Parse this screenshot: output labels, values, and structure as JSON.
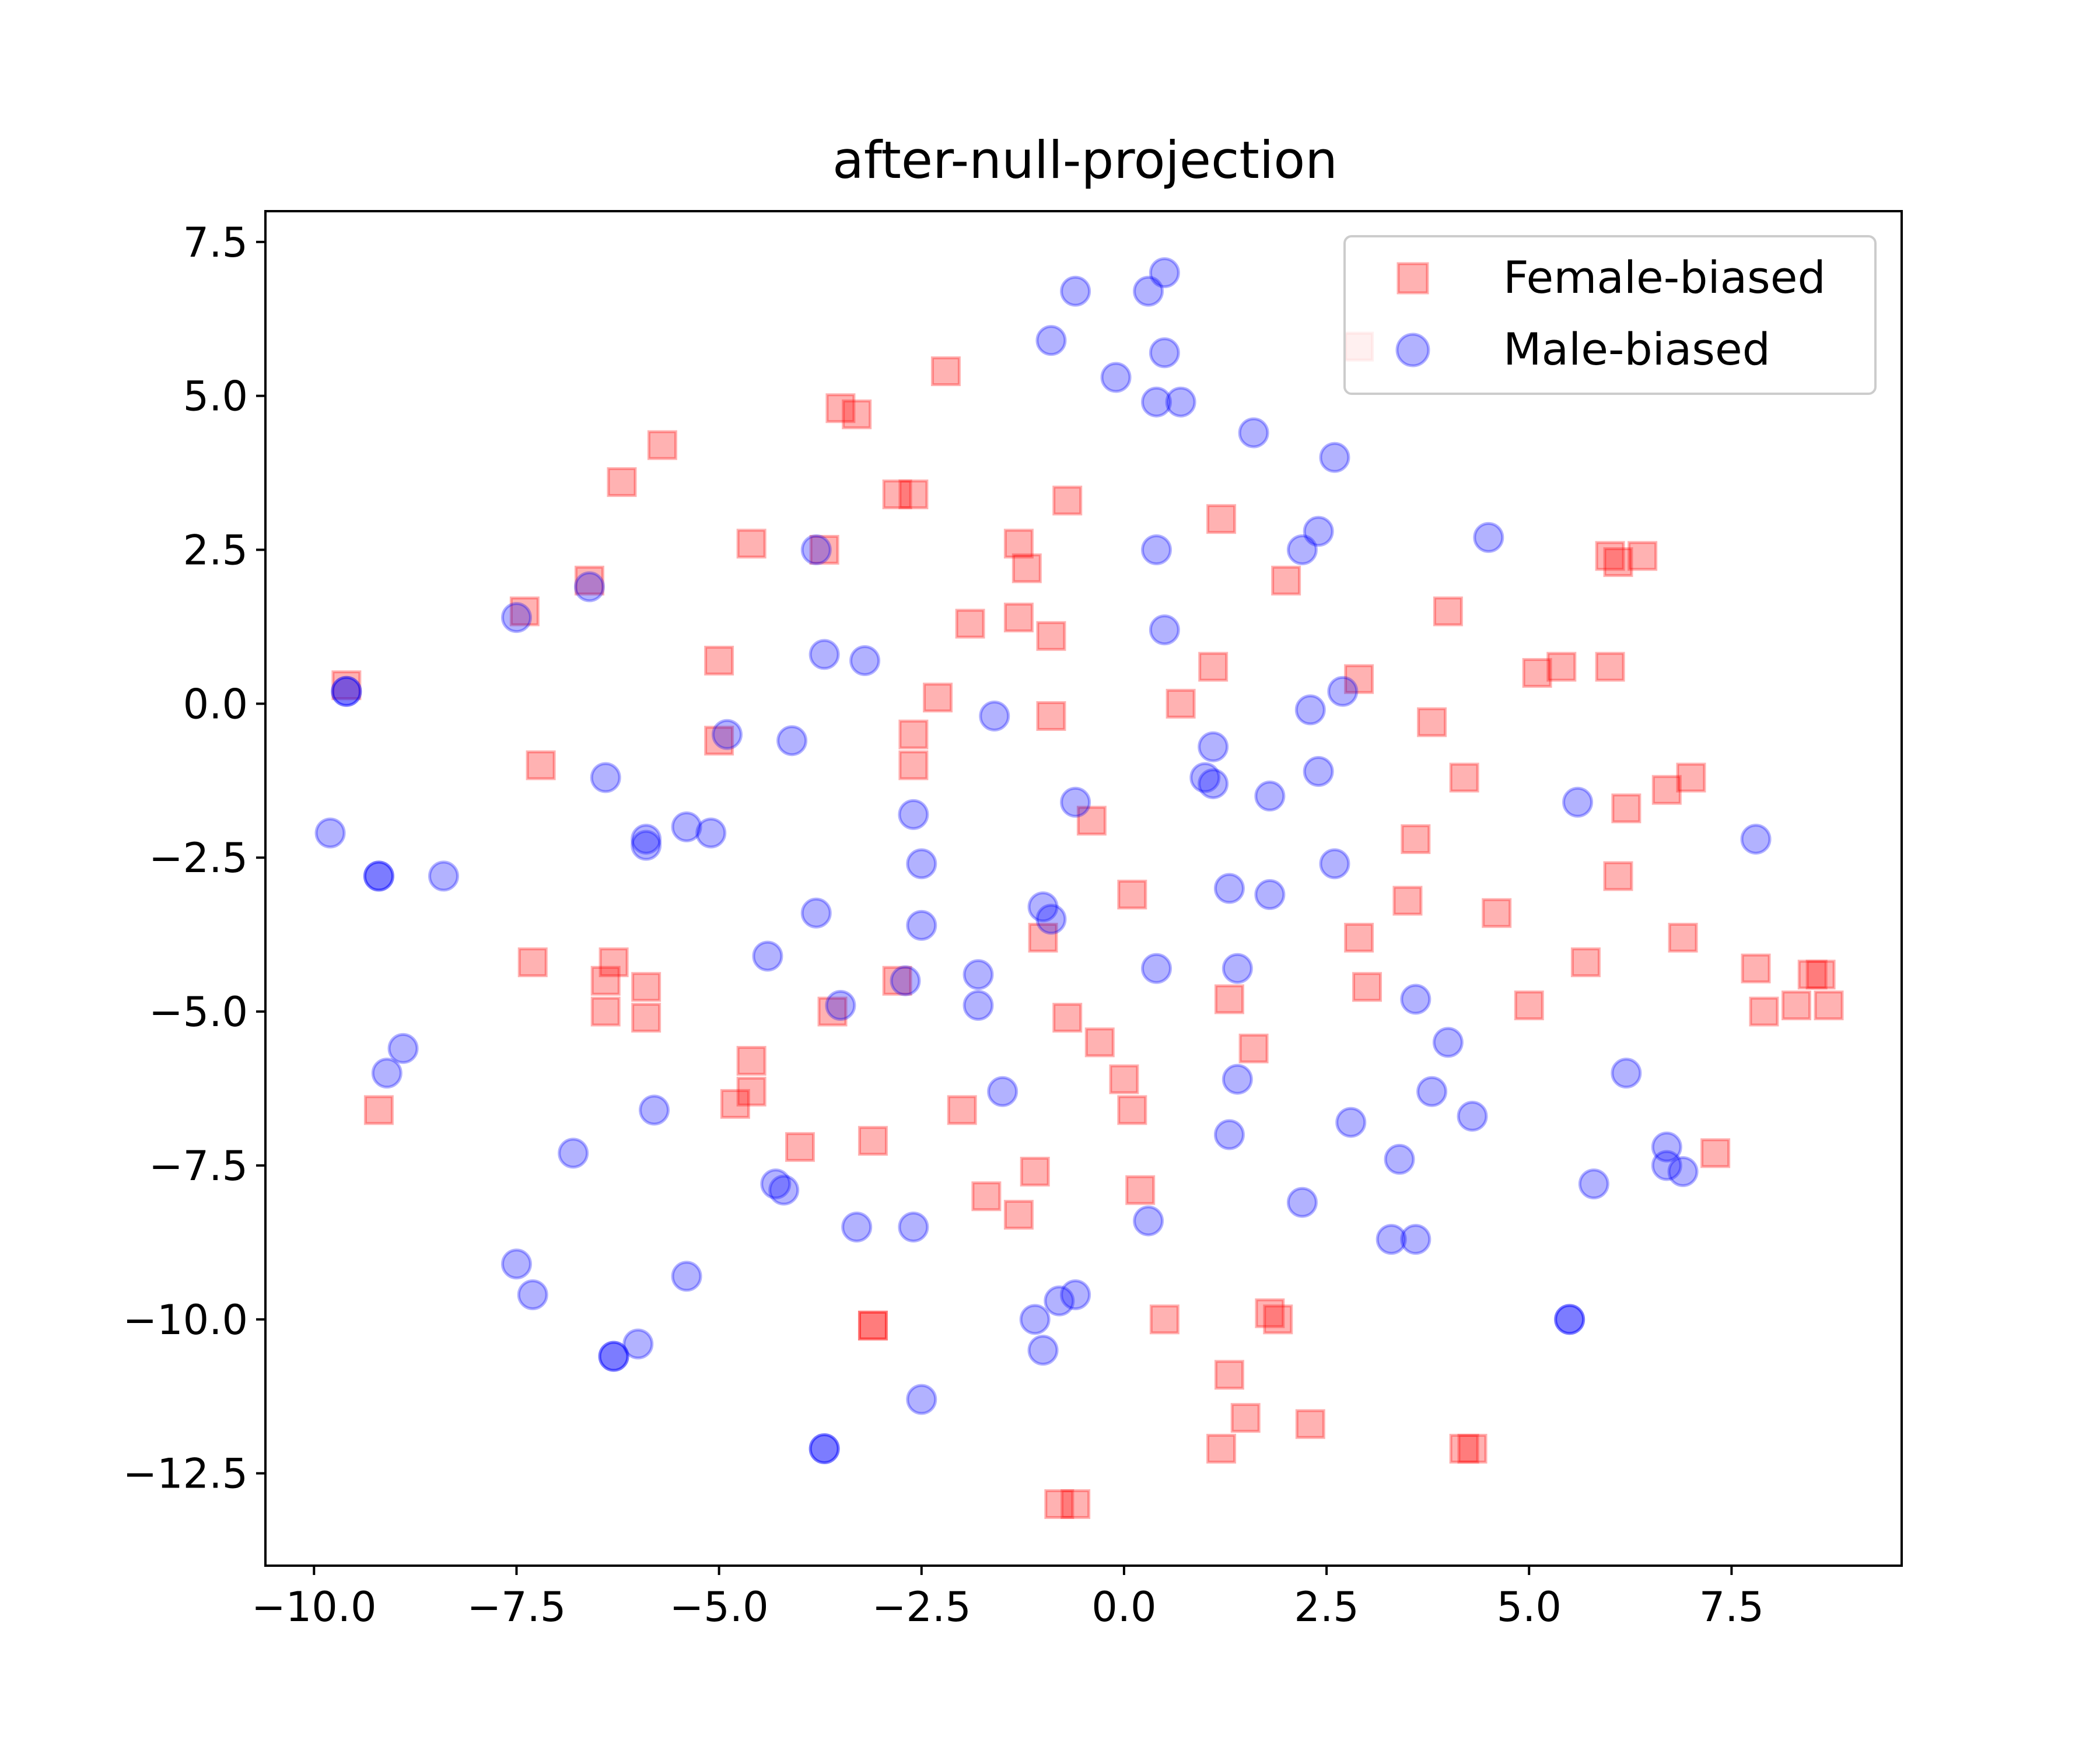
{
  "chart_data": {
    "type": "scatter",
    "title": "after-null-projection",
    "xlabel": "",
    "ylabel": "",
    "xlim": [
      -10.6,
      9.6
    ],
    "ylim": [
      -14.0,
      8.0
    ],
    "xticks": [
      -10.0,
      -7.5,
      -5.0,
      -2.5,
      0.0,
      2.5,
      5.0,
      7.5
    ],
    "xtick_labels": [
      "−10.0",
      "−7.5",
      "−5.0",
      "−2.5",
      "0.0",
      "2.5",
      "5.0",
      "7.5"
    ],
    "yticks": [
      7.5,
      5.0,
      2.5,
      0.0,
      -2.5,
      -5.0,
      -7.5,
      -10.0,
      -12.5
    ],
    "ytick_labels": [
      "7.5",
      "5.0",
      "2.5",
      "0.0",
      "−2.5",
      "−5.0",
      "−7.5",
      "−10.0",
      "−12.5"
    ],
    "grid": false,
    "legend_position": "top-right",
    "series": [
      {
        "name": "Female-biased",
        "color": "#ff0000",
        "marker": "square",
        "alpha": 0.3,
        "points": [
          [
            -9.6,
            0.3
          ],
          [
            -9.2,
            -6.6
          ],
          [
            -7.4,
            1.5
          ],
          [
            -7.2,
            -1.0
          ],
          [
            -7.3,
            -4.2
          ],
          [
            -6.6,
            2.0
          ],
          [
            -6.2,
            3.6
          ],
          [
            -6.3,
            -4.2
          ],
          [
            -6.4,
            -4.5
          ],
          [
            -6.4,
            -5.0
          ],
          [
            -5.7,
            4.2
          ],
          [
            -5.9,
            -4.6
          ],
          [
            -5.9,
            -5.1
          ],
          [
            -5.0,
            0.7
          ],
          [
            -5.0,
            -0.6
          ],
          [
            -4.8,
            -6.5
          ],
          [
            -4.6,
            2.6
          ],
          [
            -4.6,
            -5.8
          ],
          [
            -4.6,
            -6.3
          ],
          [
            -4.0,
            -7.2
          ],
          [
            -3.7,
            2.5
          ],
          [
            -3.5,
            4.8
          ],
          [
            -3.6,
            -5.0
          ],
          [
            -3.3,
            4.7
          ],
          [
            -3.1,
            -7.1
          ],
          [
            -3.1,
            -10.1
          ],
          [
            -3.1,
            -10.1
          ],
          [
            -2.8,
            3.4
          ],
          [
            -2.6,
            3.4
          ],
          [
            -2.6,
            -0.5
          ],
          [
            -2.6,
            -1.0
          ],
          [
            -2.8,
            -4.5
          ],
          [
            -2.2,
            5.4
          ],
          [
            -2.3,
            0.1
          ],
          [
            -2.0,
            -6.6
          ],
          [
            -1.9,
            1.3
          ],
          [
            -1.7,
            -8.0
          ],
          [
            -1.3,
            2.6
          ],
          [
            -1.3,
            1.4
          ],
          [
            -1.2,
            2.2
          ],
          [
            -1.3,
            -8.3
          ],
          [
            -1.1,
            -7.6
          ],
          [
            -1.0,
            -3.8
          ],
          [
            -0.9,
            1.1
          ],
          [
            -0.9,
            -0.2
          ],
          [
            -0.7,
            3.3
          ],
          [
            -0.7,
            -5.1
          ],
          [
            -0.8,
            -13.0
          ],
          [
            -0.6,
            -13.0
          ],
          [
            -0.4,
            -1.9
          ],
          [
            -0.3,
            -5.5
          ],
          [
            0.0,
            -6.1
          ],
          [
            0.1,
            -3.1
          ],
          [
            0.1,
            -6.6
          ],
          [
            0.2,
            -7.9
          ],
          [
            0.5,
            -10.0
          ],
          [
            0.7,
            0.0
          ],
          [
            1.1,
            0.6
          ],
          [
            1.2,
            3.0
          ],
          [
            1.3,
            -4.8
          ],
          [
            1.3,
            -10.9
          ],
          [
            1.2,
            -12.1
          ],
          [
            1.5,
            -11.6
          ],
          [
            1.6,
            -5.6
          ],
          [
            1.8,
            -9.9
          ],
          [
            1.9,
            -10.0
          ],
          [
            2.0,
            2.0
          ],
          [
            2.3,
            -11.7
          ],
          [
            2.9,
            5.8
          ],
          [
            2.9,
            0.4
          ],
          [
            2.9,
            -3.8
          ],
          [
            3.0,
            -4.6
          ],
          [
            3.5,
            -3.2
          ],
          [
            3.6,
            -2.2
          ],
          [
            3.8,
            -0.3
          ],
          [
            4.0,
            1.5
          ],
          [
            4.2,
            -1.2
          ],
          [
            4.2,
            -12.1
          ],
          [
            4.3,
            -12.1
          ],
          [
            4.6,
            -3.4
          ],
          [
            5.0,
            -4.9
          ],
          [
            5.1,
            0.5
          ],
          [
            5.4,
            0.6
          ],
          [
            5.7,
            -4.2
          ],
          [
            6.0,
            2.4
          ],
          [
            6.0,
            0.6
          ],
          [
            6.1,
            2.3
          ],
          [
            6.1,
            -2.8
          ],
          [
            6.2,
            -1.7
          ],
          [
            6.4,
            2.4
          ],
          [
            6.7,
            -1.4
          ],
          [
            6.9,
            -3.8
          ],
          [
            7.0,
            -1.2
          ],
          [
            7.3,
            -7.3
          ],
          [
            7.8,
            -4.3
          ],
          [
            7.9,
            -5.0
          ],
          [
            8.3,
            -4.9
          ],
          [
            8.5,
            -4.4
          ],
          [
            8.6,
            -4.4
          ],
          [
            8.7,
            -4.9
          ]
        ]
      },
      {
        "name": "Male-biased",
        "color": "#0000ff",
        "marker": "circle",
        "alpha": 0.3,
        "points": [
          [
            -9.6,
            0.2
          ],
          [
            -9.6,
            0.2
          ],
          [
            -9.8,
            -2.1
          ],
          [
            -9.2,
            -2.8
          ],
          [
            -9.2,
            -2.8
          ],
          [
            -8.4,
            -2.8
          ],
          [
            -8.9,
            -5.6
          ],
          [
            -9.1,
            -6.0
          ],
          [
            -7.5,
            1.4
          ],
          [
            -6.6,
            1.9
          ],
          [
            -6.4,
            -1.2
          ],
          [
            -5.9,
            -2.2
          ],
          [
            -5.9,
            -2.3
          ],
          [
            -5.4,
            -2.0
          ],
          [
            -5.1,
            -2.1
          ],
          [
            -4.9,
            -0.5
          ],
          [
            -5.8,
            -6.6
          ],
          [
            -6.8,
            -7.3
          ],
          [
            -7.5,
            -9.1
          ],
          [
            -7.3,
            -9.6
          ],
          [
            -6.3,
            -10.6
          ],
          [
            -6.3,
            -10.6
          ],
          [
            -6.0,
            -10.4
          ],
          [
            -5.4,
            -9.3
          ],
          [
            -4.1,
            -0.6
          ],
          [
            -3.8,
            2.5
          ],
          [
            -3.7,
            0.8
          ],
          [
            -3.2,
            0.7
          ],
          [
            -3.8,
            -3.4
          ],
          [
            -4.4,
            -4.1
          ],
          [
            -3.5,
            -4.9
          ],
          [
            -4.3,
            -7.8
          ],
          [
            -4.2,
            -7.9
          ],
          [
            -3.3,
            -8.5
          ],
          [
            -3.7,
            -12.1
          ],
          [
            -3.7,
            -12.1
          ],
          [
            -2.6,
            -1.8
          ],
          [
            -2.5,
            -2.6
          ],
          [
            -2.5,
            -3.6
          ],
          [
            -2.7,
            -4.5
          ],
          [
            -2.6,
            -8.5
          ],
          [
            -2.5,
            -11.3
          ],
          [
            -1.8,
            -4.4
          ],
          [
            -1.8,
            -4.9
          ],
          [
            -1.6,
            -0.2
          ],
          [
            -1.5,
            -6.3
          ],
          [
            -1.1,
            -10.0
          ],
          [
            -1.0,
            -3.3
          ],
          [
            -0.9,
            -3.5
          ],
          [
            -1.0,
            -10.5
          ],
          [
            -0.9,
            5.9
          ],
          [
            -0.6,
            6.7
          ],
          [
            -0.6,
            -1.6
          ],
          [
            -0.8,
            -9.7
          ],
          [
            -0.6,
            -9.6
          ],
          [
            -0.1,
            5.3
          ],
          [
            0.3,
            6.7
          ],
          [
            0.5,
            7.0
          ],
          [
            0.5,
            5.7
          ],
          [
            0.4,
            4.9
          ],
          [
            0.7,
            4.9
          ],
          [
            0.4,
            2.5
          ],
          [
            0.5,
            1.2
          ],
          [
            0.3,
            -8.4
          ],
          [
            0.4,
            -4.3
          ],
          [
            1.0,
            -1.2
          ],
          [
            1.1,
            -1.3
          ],
          [
            1.1,
            -0.7
          ],
          [
            1.3,
            -3.0
          ],
          [
            1.4,
            -4.3
          ],
          [
            1.4,
            -6.1
          ],
          [
            1.3,
            -7.0
          ],
          [
            1.6,
            4.4
          ],
          [
            1.8,
            -1.5
          ],
          [
            1.8,
            -3.1
          ],
          [
            2.2,
            2.5
          ],
          [
            2.4,
            2.8
          ],
          [
            2.3,
            -0.1
          ],
          [
            2.4,
            -1.1
          ],
          [
            2.6,
            4.0
          ],
          [
            2.6,
            -2.6
          ],
          [
            2.7,
            0.2
          ],
          [
            2.8,
            -6.8
          ],
          [
            2.2,
            -8.1
          ],
          [
            3.3,
            -8.7
          ],
          [
            3.4,
            -7.4
          ],
          [
            3.6,
            -8.7
          ],
          [
            3.6,
            -4.8
          ],
          [
            3.8,
            -6.3
          ],
          [
            4.0,
            -5.5
          ],
          [
            4.3,
            -6.7
          ],
          [
            4.5,
            2.7
          ],
          [
            5.5,
            -10.0
          ],
          [
            5.5,
            -10.0
          ],
          [
            5.6,
            -1.6
          ],
          [
            5.8,
            -7.8
          ],
          [
            6.2,
            -6.0
          ],
          [
            6.7,
            -7.2
          ],
          [
            6.7,
            -7.5
          ],
          [
            6.9,
            -7.6
          ],
          [
            7.8,
            -2.2
          ]
        ]
      }
    ]
  }
}
